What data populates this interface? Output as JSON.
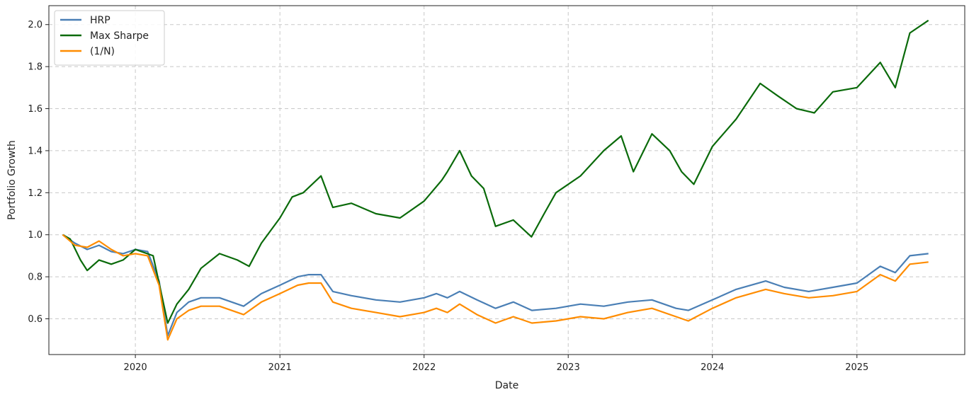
{
  "chart_data": {
    "type": "line",
    "xlabel": "Date",
    "ylabel": "Portfolio Growth",
    "xlim": [
      "2019-05-27",
      "2025-10-01"
    ],
    "ylim": [
      0.43,
      2.09
    ],
    "x_ticks": [
      "2020-01-01",
      "2021-01-01",
      "2022-01-01",
      "2023-01-01",
      "2024-01-01",
      "2025-01-01"
    ],
    "x_tick_labels": [
      "2020",
      "2021",
      "2022",
      "2023",
      "2024",
      "2025"
    ],
    "y_ticks": [
      0.6,
      0.8,
      1.0,
      1.2,
      1.4,
      1.6,
      1.8,
      2.0
    ],
    "y_tick_labels": [
      "0.6",
      "0.8",
      "1.0",
      "1.2",
      "1.4",
      "1.6",
      "1.8",
      "2.0"
    ],
    "grid": true,
    "legend_position": "top-left",
    "series": [
      {
        "name": "HRP",
        "color": "#4a7fb5",
        "points": [
          [
            "2019-07-01",
            1.0
          ],
          [
            "2019-08-01",
            0.96
          ],
          [
            "2019-09-01",
            0.93
          ],
          [
            "2019-10-01",
            0.95
          ],
          [
            "2019-11-01",
            0.92
          ],
          [
            "2019-12-01",
            0.91
          ],
          [
            "2020-01-01",
            0.93
          ],
          [
            "2020-02-01",
            0.92
          ],
          [
            "2020-03-01",
            0.78
          ],
          [
            "2020-03-23",
            0.52
          ],
          [
            "2020-04-15",
            0.63
          ],
          [
            "2020-05-15",
            0.68
          ],
          [
            "2020-06-15",
            0.7
          ],
          [
            "2020-08-01",
            0.7
          ],
          [
            "2020-10-01",
            0.66
          ],
          [
            "2020-11-15",
            0.72
          ],
          [
            "2021-01-01",
            0.76
          ],
          [
            "2021-02-15",
            0.8
          ],
          [
            "2021-03-15",
            0.81
          ],
          [
            "2021-04-15",
            0.81
          ],
          [
            "2021-05-15",
            0.73
          ],
          [
            "2021-07-01",
            0.71
          ],
          [
            "2021-09-01",
            0.69
          ],
          [
            "2021-11-01",
            0.68
          ],
          [
            "2022-01-01",
            0.7
          ],
          [
            "2022-02-01",
            0.72
          ],
          [
            "2022-03-01",
            0.7
          ],
          [
            "2022-04-01",
            0.73
          ],
          [
            "2022-05-15",
            0.69
          ],
          [
            "2022-07-01",
            0.65
          ],
          [
            "2022-08-15",
            0.68
          ],
          [
            "2022-10-01",
            0.64
          ],
          [
            "2022-12-01",
            0.65
          ],
          [
            "2023-02-01",
            0.67
          ],
          [
            "2023-04-01",
            0.66
          ],
          [
            "2023-06-01",
            0.68
          ],
          [
            "2023-08-01",
            0.69
          ],
          [
            "2023-10-01",
            0.65
          ],
          [
            "2023-11-01",
            0.64
          ],
          [
            "2024-01-01",
            0.69
          ],
          [
            "2024-03-01",
            0.74
          ],
          [
            "2024-05-15",
            0.78
          ],
          [
            "2024-07-01",
            0.75
          ],
          [
            "2024-09-01",
            0.73
          ],
          [
            "2024-11-01",
            0.75
          ],
          [
            "2025-01-01",
            0.77
          ],
          [
            "2025-03-01",
            0.85
          ],
          [
            "2025-04-08",
            0.82
          ],
          [
            "2025-05-15",
            0.9
          ],
          [
            "2025-07-01",
            0.91
          ]
        ]
      },
      {
        "name": "Max Sharpe",
        "color": "#0a6a0a",
        "points": [
          [
            "2019-07-01",
            1.0
          ],
          [
            "2019-07-20",
            0.98
          ],
          [
            "2019-08-15",
            0.88
          ],
          [
            "2019-09-01",
            0.83
          ],
          [
            "2019-10-01",
            0.88
          ],
          [
            "2019-11-01",
            0.86
          ],
          [
            "2019-12-01",
            0.88
          ],
          [
            "2020-01-01",
            0.93
          ],
          [
            "2020-02-15",
            0.9
          ],
          [
            "2020-03-23",
            0.58
          ],
          [
            "2020-04-15",
            0.67
          ],
          [
            "2020-05-15",
            0.74
          ],
          [
            "2020-06-15",
            0.84
          ],
          [
            "2020-08-01",
            0.91
          ],
          [
            "2020-09-15",
            0.88
          ],
          [
            "2020-10-15",
            0.85
          ],
          [
            "2020-11-15",
            0.96
          ],
          [
            "2021-01-01",
            1.08
          ],
          [
            "2021-02-01",
            1.18
          ],
          [
            "2021-03-01",
            1.2
          ],
          [
            "2021-04-15",
            1.28
          ],
          [
            "2021-05-15",
            1.13
          ],
          [
            "2021-07-01",
            1.15
          ],
          [
            "2021-09-01",
            1.1
          ],
          [
            "2021-11-01",
            1.08
          ],
          [
            "2022-01-01",
            1.16
          ],
          [
            "2022-02-15",
            1.26
          ],
          [
            "2022-03-01",
            1.3
          ],
          [
            "2022-04-01",
            1.4
          ],
          [
            "2022-05-01",
            1.28
          ],
          [
            "2022-06-01",
            1.22
          ],
          [
            "2022-07-01",
            1.04
          ],
          [
            "2022-08-15",
            1.07
          ],
          [
            "2022-09-30",
            0.99
          ],
          [
            "2022-11-01",
            1.1
          ],
          [
            "2022-12-01",
            1.2
          ],
          [
            "2023-02-01",
            1.28
          ],
          [
            "2023-04-01",
            1.4
          ],
          [
            "2023-05-15",
            1.47
          ],
          [
            "2023-06-15",
            1.3
          ],
          [
            "2023-08-01",
            1.48
          ],
          [
            "2023-09-15",
            1.4
          ],
          [
            "2023-10-15",
            1.3
          ],
          [
            "2023-11-15",
            1.24
          ],
          [
            "2024-01-01",
            1.42
          ],
          [
            "2024-03-01",
            1.55
          ],
          [
            "2024-05-01",
            1.72
          ],
          [
            "2024-06-15",
            1.66
          ],
          [
            "2024-08-01",
            1.6
          ],
          [
            "2024-09-15",
            1.58
          ],
          [
            "2024-11-01",
            1.68
          ],
          [
            "2025-01-01",
            1.7
          ],
          [
            "2025-03-01",
            1.82
          ],
          [
            "2025-04-08",
            1.7
          ],
          [
            "2025-05-15",
            1.96
          ],
          [
            "2025-07-01",
            2.02
          ]
        ]
      },
      {
        "name": "(1/N)",
        "color": "#ff8c00",
        "points": [
          [
            "2019-07-01",
            1.0
          ],
          [
            "2019-08-01",
            0.95
          ],
          [
            "2019-09-01",
            0.94
          ],
          [
            "2019-10-01",
            0.97
          ],
          [
            "2019-11-01",
            0.93
          ],
          [
            "2019-12-01",
            0.9
          ],
          [
            "2020-01-01",
            0.91
          ],
          [
            "2020-02-01",
            0.9
          ],
          [
            "2020-03-01",
            0.76
          ],
          [
            "2020-03-23",
            0.5
          ],
          [
            "2020-04-15",
            0.6
          ],
          [
            "2020-05-15",
            0.64
          ],
          [
            "2020-06-15",
            0.66
          ],
          [
            "2020-08-01",
            0.66
          ],
          [
            "2020-10-01",
            0.62
          ],
          [
            "2020-11-15",
            0.68
          ],
          [
            "2021-01-01",
            0.72
          ],
          [
            "2021-02-15",
            0.76
          ],
          [
            "2021-03-15",
            0.77
          ],
          [
            "2021-04-15",
            0.77
          ],
          [
            "2021-05-15",
            0.68
          ],
          [
            "2021-07-01",
            0.65
          ],
          [
            "2021-09-01",
            0.63
          ],
          [
            "2021-11-01",
            0.61
          ],
          [
            "2022-01-01",
            0.63
          ],
          [
            "2022-02-01",
            0.65
          ],
          [
            "2022-03-01",
            0.63
          ],
          [
            "2022-04-01",
            0.67
          ],
          [
            "2022-05-15",
            0.62
          ],
          [
            "2022-07-01",
            0.58
          ],
          [
            "2022-08-15",
            0.61
          ],
          [
            "2022-10-01",
            0.58
          ],
          [
            "2022-12-01",
            0.59
          ],
          [
            "2023-02-01",
            0.61
          ],
          [
            "2023-04-01",
            0.6
          ],
          [
            "2023-06-01",
            0.63
          ],
          [
            "2023-08-01",
            0.65
          ],
          [
            "2023-10-01",
            0.61
          ],
          [
            "2023-11-01",
            0.59
          ],
          [
            "2024-01-01",
            0.65
          ],
          [
            "2024-03-01",
            0.7
          ],
          [
            "2024-05-15",
            0.74
          ],
          [
            "2024-07-01",
            0.72
          ],
          [
            "2024-09-01",
            0.7
          ],
          [
            "2024-11-01",
            0.71
          ],
          [
            "2025-01-01",
            0.73
          ],
          [
            "2025-03-01",
            0.81
          ],
          [
            "2025-04-08",
            0.78
          ],
          [
            "2025-05-15",
            0.86
          ],
          [
            "2025-07-01",
            0.87
          ]
        ]
      }
    ]
  }
}
